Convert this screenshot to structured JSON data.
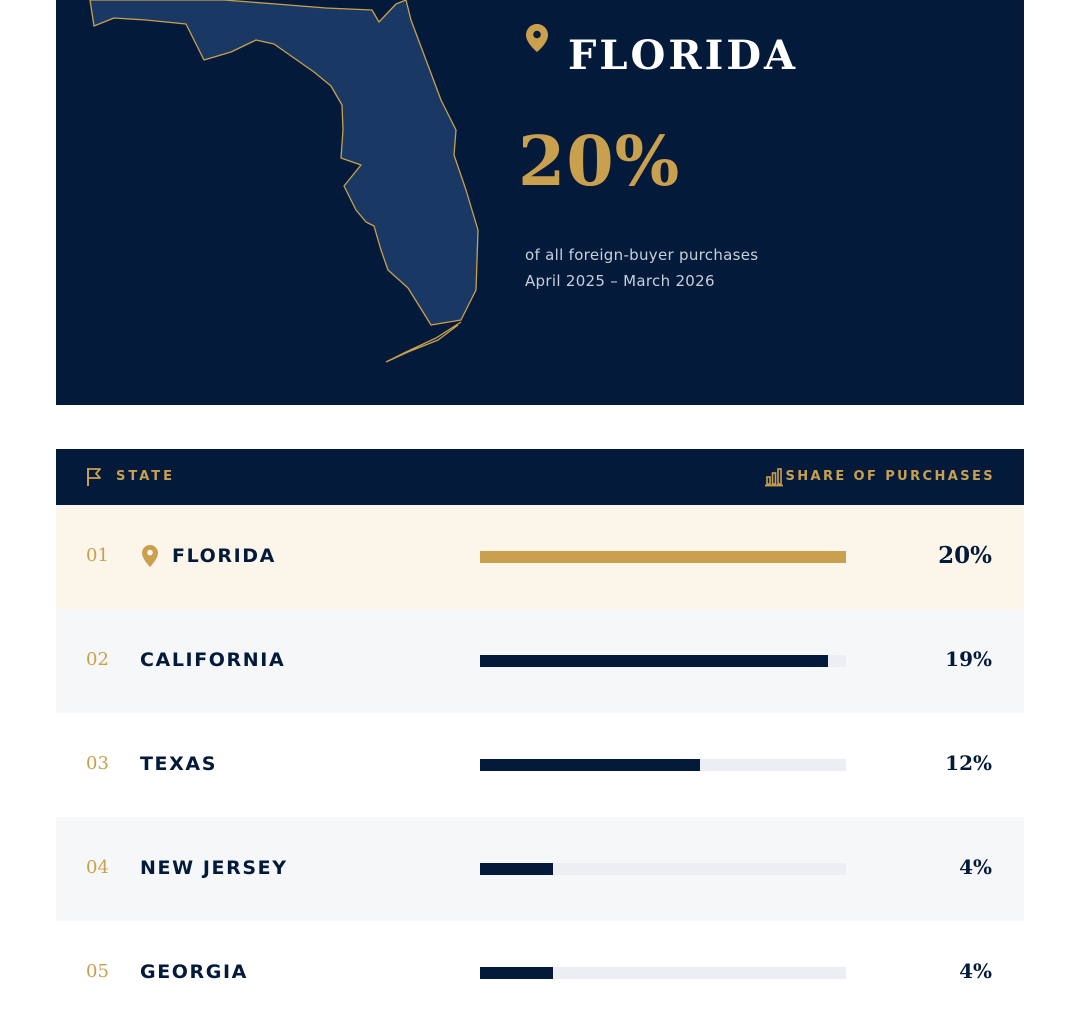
{
  "hero": {
    "state": "FLORIDA",
    "share": "20%",
    "caption_line1": "of all foreign-buyer purchases",
    "caption_line2": "April 2025 – March 2026"
  },
  "table": {
    "col_state": "STATE",
    "col_share": "SHARE OF PURCHASES"
  },
  "colors": {
    "navy": "#041a3b",
    "gold": "#c9a04e",
    "map_fill": "#193863"
  },
  "chart_data": {
    "type": "bar",
    "orientation": "horizontal",
    "title": "",
    "xlabel": "SHARE OF PURCHASES",
    "ylabel": "STATE",
    "xlim": [
      0,
      20
    ],
    "categories": [
      "FLORIDA",
      "CALIFORNIA",
      "TEXAS",
      "NEW JERSEY",
      "GEORGIA"
    ],
    "ranks": [
      "01",
      "02",
      "03",
      "04",
      "05"
    ],
    "values": [
      20,
      19,
      12,
      4,
      4
    ],
    "labels": [
      "20%",
      "19%",
      "12%",
      "4%",
      "4%"
    ],
    "highlight": "FLORIDA"
  }
}
